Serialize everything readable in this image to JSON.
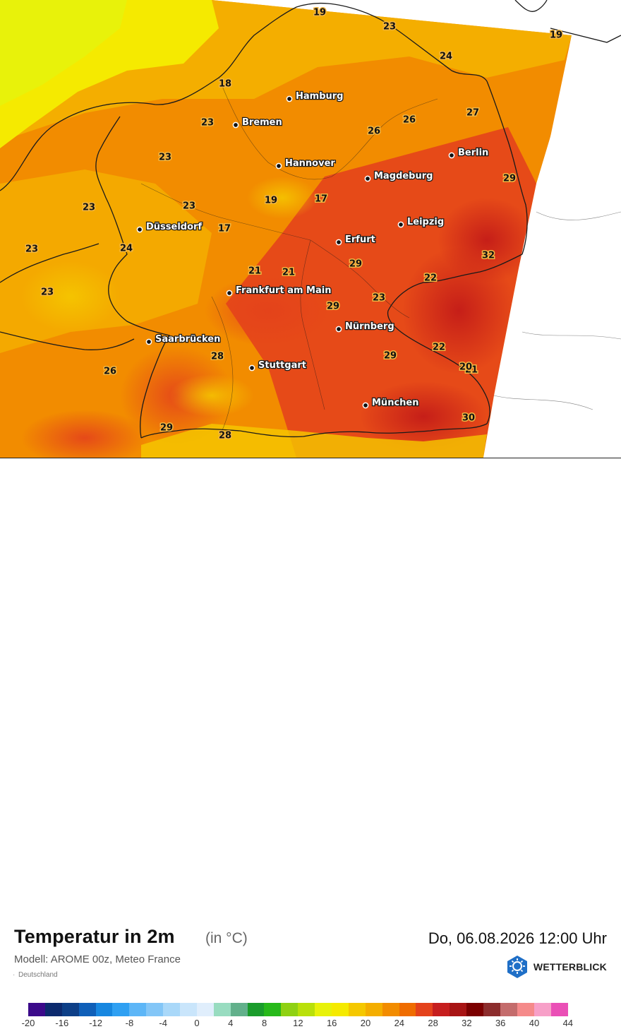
{
  "map": {
    "cities": [
      {
        "name": "Hamburg"
      },
      {
        "name": "Bremen"
      },
      {
        "name": "Berlin"
      },
      {
        "name": "Hannover"
      },
      {
        "name": "Magdeburg"
      },
      {
        "name": "Leipzig"
      },
      {
        "name": "Düsseldorf"
      },
      {
        "name": "Erfurt"
      },
      {
        "name": "Frankfurt am Main"
      },
      {
        "name": "Nürnberg"
      },
      {
        "name": "Saarbrücken"
      },
      {
        "name": "Stuttgart"
      },
      {
        "name": "München"
      }
    ],
    "temperature_labels": [
      "19",
      "23",
      "19",
      "24",
      "18",
      "27",
      "23",
      "26",
      "26",
      "23",
      "29",
      "23",
      "17",
      "19",
      "23",
      "23",
      "17",
      "24",
      "23",
      "32",
      "21",
      "21",
      "29",
      "22",
      "22",
      "29",
      "23",
      "21",
      "28",
      "29",
      "26",
      "20",
      "30",
      "29",
      "28"
    ]
  },
  "header": {
    "title": "Temperatur in 2m",
    "unit": "(in °C)",
    "datetime": "Do, 06.08.2026 12:00 Uhr",
    "model": "Modell: AROME 00z, Meteo France",
    "region": "Deutschland",
    "brand": "WETTERBLICK"
  },
  "legend": {
    "ticks": [
      "-20",
      "-16",
      "-12",
      "-8",
      "-4",
      "0",
      "4",
      "8",
      "12",
      "16",
      "20",
      "24",
      "28",
      "32",
      "36",
      "40",
      "44"
    ],
    "colors": [
      "#3b0a8a",
      "#0c2a6e",
      "#0d3f87",
      "#0f5fb8",
      "#1787e0",
      "#2fa0f2",
      "#5db6f7",
      "#83c6f7",
      "#a9d8f9",
      "#c9e5fb",
      "#e0eefc",
      "#98dcc0",
      "#62b08b",
      "#1a9c2c",
      "#27b91a",
      "#8fd113",
      "#b9e00a",
      "#e8f20a",
      "#f5ea00",
      "#f5c800",
      "#f4ae00",
      "#f28c00",
      "#ef6c00",
      "#e4421b",
      "#c61e1e",
      "#a81414",
      "#7b0000",
      "#8c2d2d",
      "#c46c6c",
      "#f58a8a",
      "#f7a0c8",
      "#ea4fb6"
    ]
  }
}
